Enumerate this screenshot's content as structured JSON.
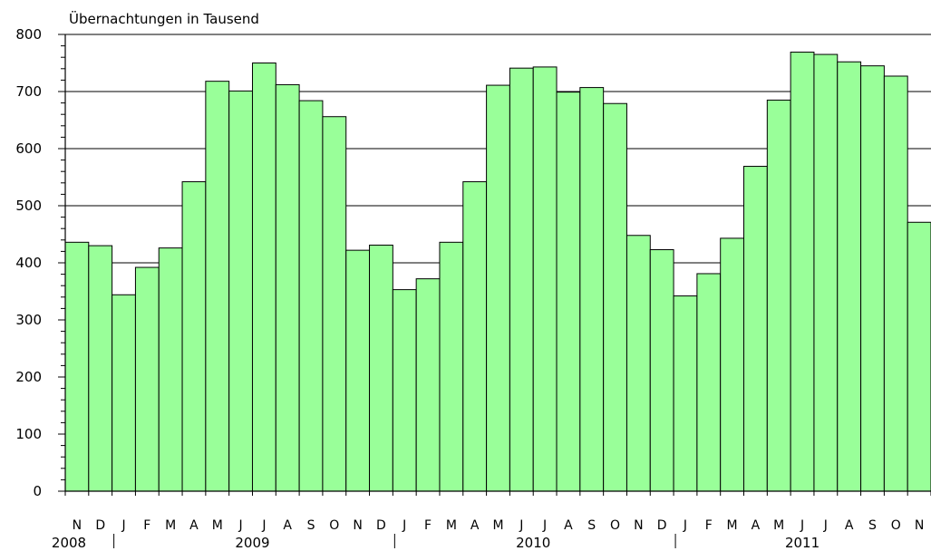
{
  "chart_data": {
    "type": "bar",
    "ylabel": "Übernachtungen in Tausend",
    "ylim": [
      0,
      800
    ],
    "yticks": [
      0,
      100,
      200,
      300,
      400,
      500,
      600,
      700,
      800
    ],
    "grid": "horizontal",
    "bar_color": "#99ff99",
    "categories": [
      "N",
      "D",
      "J",
      "F",
      "M",
      "A",
      "M",
      "J",
      "J",
      "A",
      "S",
      "O",
      "N",
      "D",
      "J",
      "F",
      "M",
      "A",
      "M",
      "J",
      "J",
      "A",
      "S",
      "O",
      "N",
      "D",
      "J",
      "F",
      "M",
      "A",
      "M",
      "J",
      "J",
      "A",
      "S",
      "O",
      "N"
    ],
    "values": [
      436,
      430,
      344,
      392,
      426,
      542,
      718,
      701,
      750,
      712,
      684,
      656,
      422,
      431,
      353,
      372,
      436,
      542,
      711,
      741,
      743,
      699,
      707,
      679,
      448,
      423,
      342,
      381,
      443,
      569,
      685,
      769,
      765,
      752,
      745,
      727,
      471
    ],
    "years": [
      {
        "label": "2008",
        "start": 0,
        "end": 2
      },
      {
        "label": "2009",
        "start": 2,
        "end": 14
      },
      {
        "label": "2010",
        "start": 14,
        "end": 26
      },
      {
        "label": "2011",
        "start": 26,
        "end": 37
      }
    ]
  }
}
